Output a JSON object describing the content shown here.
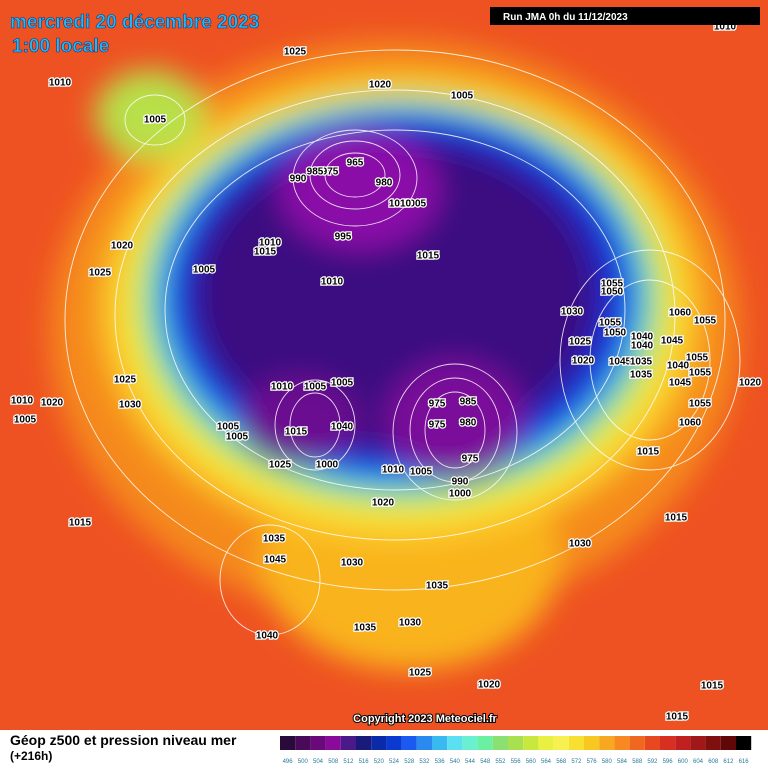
{
  "header": {
    "date": "mercredi 20 décembre 2023",
    "time": "1:00 locale",
    "run": "Run JMA 0h du 11/12/2023"
  },
  "copyright": "Copyright 2023 Meteociel.fr",
  "footer": {
    "title": "Géop z500 et pression niveau mer",
    "lead": "(+216h)"
  },
  "scale": [
    496,
    500,
    504,
    508,
    512,
    516,
    520,
    524,
    528,
    532,
    536,
    540,
    544,
    548,
    552,
    556,
    560,
    564,
    568,
    572,
    576,
    580,
    584,
    588,
    592,
    596,
    600,
    604,
    608,
    612,
    616
  ],
  "isobars": {
    "labels": [
      "1025",
      "1020",
      "1010",
      "1005",
      "1005",
      "965",
      "975",
      "985",
      "990",
      "980",
      "1005",
      "1010",
      "995",
      "1010",
      "1015",
      "1020",
      "1005",
      "1015",
      "1025",
      "1010",
      "1055",
      "1050",
      "1030",
      "1060",
      "1055",
      "1055",
      "1050",
      "1040",
      "1045",
      "1040",
      "1025",
      "1020",
      "1045",
      "1035",
      "1055",
      "1035",
      "1055",
      "1040",
      "1045",
      "1020",
      "1025",
      "1010",
      "1005",
      "1005",
      "1055",
      "1010",
      "1020",
      "1030",
      "975",
      "985",
      "1005",
      "1040",
      "975",
      "980",
      "1005",
      "1005",
      "1015",
      "1060",
      "1025",
      "1000",
      "1010",
      "1005",
      "975",
      "1015",
      "990",
      "1000",
      "1020",
      "1015",
      "1015",
      "1035",
      "1030",
      "1045",
      "1030",
      "1035",
      "1035",
      "1030",
      "1040",
      "1025",
      "1020",
      "1015",
      "1015",
      "1010"
    ]
  }
}
